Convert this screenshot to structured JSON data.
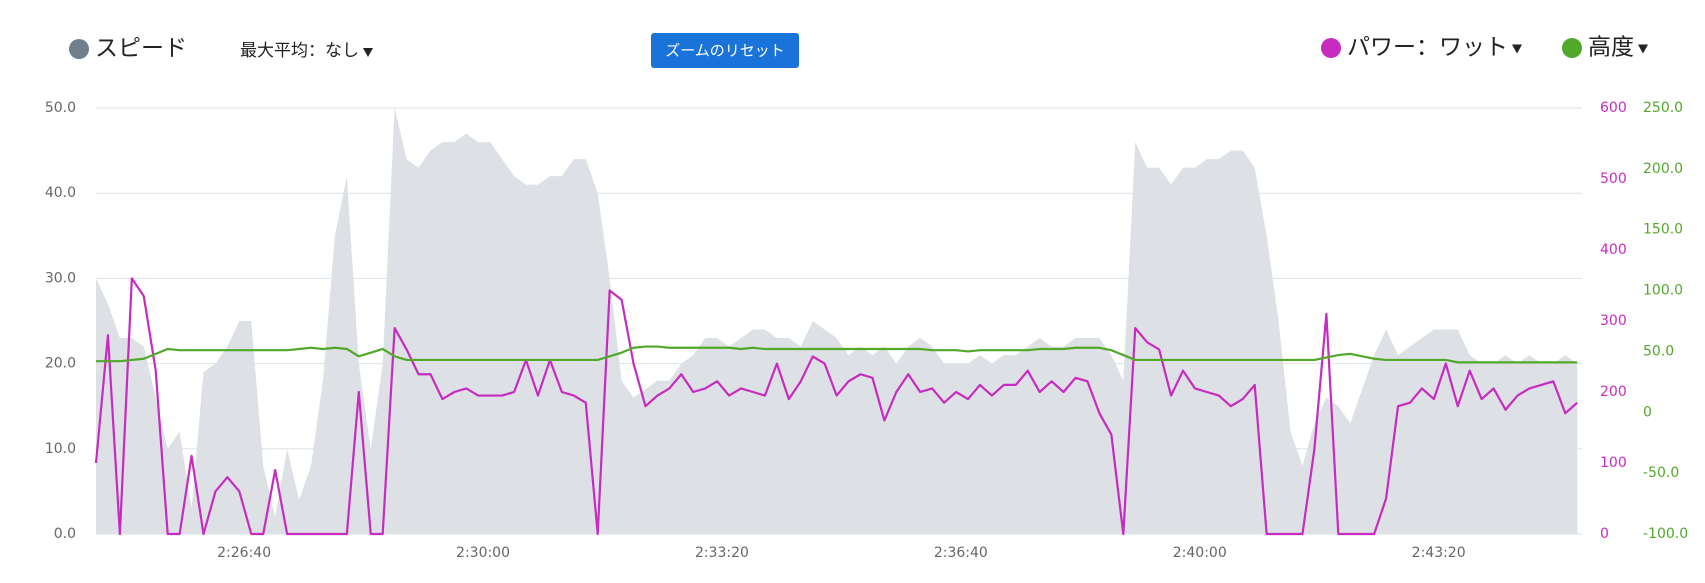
{
  "chart_data": {
    "type": "line",
    "toolbar": {
      "max_average": "最大平均：なし",
      "reset_zoom": "ズームのリセット"
    },
    "x": [
      8676,
      8686,
      8696,
      8706,
      8716,
      8726,
      8736,
      8746,
      8756,
      8766,
      8776,
      8786,
      8796,
      8806,
      8816,
      8826,
      8836,
      8846,
      8856,
      8866,
      8876,
      8886,
      8896,
      8906,
      8916,
      8926,
      8936,
      8946,
      8956,
      8966,
      8976,
      8986,
      8996,
      9006,
      9016,
      9026,
      9036,
      9046,
      9056,
      9066,
      9076,
      9086,
      9096,
      9106,
      9116,
      9126,
      9136,
      9146,
      9156,
      9166,
      9176,
      9186,
      9196,
      9206,
      9216,
      9226,
      9236,
      9246,
      9256,
      9266,
      9276,
      9286,
      9296,
      9306,
      9316,
      9326,
      9336,
      9346,
      9356,
      9366,
      9376,
      9386,
      9396,
      9406,
      9416,
      9426,
      9436,
      9446,
      9456,
      9466,
      9476,
      9486,
      9496,
      9506,
      9516,
      9526,
      9536,
      9546,
      9556,
      9566,
      9576,
      9586,
      9596,
      9606,
      9616,
      9626,
      9636,
      9646,
      9656,
      9666,
      9676,
      9686,
      9696,
      9706,
      9716,
      9726,
      9736,
      9746,
      9756,
      9766,
      9776,
      9786,
      9796,
      9806,
      9816,
      9826,
      9836,
      9846,
      9856,
      9866,
      9876,
      9886,
      9896,
      9906,
      9916
    ],
    "xlim": [
      8676,
      9920
    ],
    "xticks": [
      {
        "value": 8800,
        "label": "2:26:40"
      },
      {
        "value": 9000,
        "label": "2:30:00"
      },
      {
        "value": 9200,
        "label": "2:33:20"
      },
      {
        "value": 9400,
        "label": "2:36:40"
      },
      {
        "value": 9600,
        "label": "2:40:00"
      },
      {
        "value": 9800,
        "label": "2:43:20"
      }
    ],
    "ylim": [
      0,
      50
    ],
    "yticks": [
      {
        "value": 0,
        "label": "0.0"
      },
      {
        "value": 10,
        "label": "10.0"
      },
      {
        "value": 20,
        "label": "20.0"
      },
      {
        "value": 30,
        "label": "30.0"
      },
      {
        "value": 40,
        "label": "40.0"
      },
      {
        "value": 50,
        "label": "50.0"
      }
    ],
    "y2lim": [
      0,
      600
    ],
    "y2ticks": [
      0,
      100,
      200,
      300,
      400,
      500,
      600
    ],
    "y3lim": [
      -100,
      250
    ],
    "y3ticks": [
      {
        "value": -100,
        "label": "-100.0"
      },
      {
        "value": -50,
        "label": "-50.0"
      },
      {
        "value": 0,
        "label": "0"
      },
      {
        "value": 50,
        "label": "50.0"
      },
      {
        "value": 100,
        "label": "100.0"
      },
      {
        "value": 150,
        "label": "150.0"
      },
      {
        "value": 200,
        "label": "200.0"
      },
      {
        "value": 250,
        "label": "250.0"
      }
    ],
    "grid": true,
    "series": [
      {
        "name": "スピード",
        "type": "area",
        "axis": "y",
        "color": "#dde1e5",
        "values": [
          30,
          27,
          23,
          23,
          22,
          16,
          10,
          12,
          3,
          19,
          20,
          22,
          25,
          25,
          8,
          2,
          10,
          4,
          8,
          18,
          35,
          42,
          20,
          10,
          20,
          50,
          44,
          43,
          45,
          46,
          46,
          47,
          46,
          46,
          44,
          42,
          41,
          41,
          42,
          42,
          44,
          44,
          40,
          30,
          18,
          16,
          17,
          18,
          18,
          20,
          21,
          23,
          23,
          22,
          23,
          24,
          24,
          23,
          23,
          22,
          25,
          24,
          23,
          21,
          22,
          21,
          22,
          20,
          22,
          23,
          22,
          20,
          20,
          20,
          21,
          20,
          21,
          21,
          22,
          23,
          22,
          22,
          23,
          23,
          23,
          21,
          18,
          46,
          43,
          43,
          41,
          43,
          43,
          44,
          44,
          45,
          45,
          43,
          35,
          25,
          12,
          8,
          13,
          16,
          15,
          13,
          17,
          21,
          24,
          21,
          22,
          23,
          24,
          24,
          24,
          21,
          20,
          20,
          21,
          20,
          21,
          20,
          20,
          21,
          20
        ]
      },
      {
        "name": "パワー：ワット",
        "type": "line",
        "axis": "y2",
        "color": "#c72bbf",
        "values": [
          100,
          280,
          0,
          360,
          335,
          230,
          0,
          0,
          110,
          0,
          60,
          80,
          60,
          0,
          0,
          90,
          0,
          0,
          0,
          0,
          0,
          0,
          200,
          0,
          0,
          290,
          260,
          225,
          225,
          190,
          200,
          205,
          195,
          195,
          195,
          200,
          245,
          195,
          245,
          200,
          195,
          185,
          0,
          343,
          330,
          240,
          180,
          195,
          205,
          225,
          200,
          205,
          215,
          195,
          205,
          200,
          195,
          240,
          190,
          215,
          250,
          240,
          195,
          215,
          225,
          220,
          160,
          200,
          225,
          200,
          205,
          185,
          200,
          190,
          210,
          195,
          210,
          210,
          230,
          200,
          215,
          200,
          220,
          215,
          170,
          140,
          0,
          290,
          270,
          260,
          195,
          230,
          205,
          200,
          195,
          180,
          190,
          210,
          0,
          0,
          0,
          0,
          120,
          310,
          0,
          0,
          0,
          0,
          50,
          180,
          185,
          205,
          190,
          240,
          180,
          230,
          190,
          205,
          175,
          195,
          205,
          210,
          215,
          170,
          185
        ]
      },
      {
        "name": "高度",
        "type": "line",
        "axis": "y3",
        "color": "#52a82a",
        "values": [
          42,
          42,
          42,
          43,
          44,
          48,
          52,
          51,
          51,
          51,
          51,
          51,
          51,
          51,
          51,
          51,
          51,
          52,
          53,
          52,
          53,
          52,
          46,
          49,
          52,
          46,
          43,
          43,
          43,
          43,
          43,
          43,
          43,
          43,
          43,
          43,
          43,
          43,
          43,
          43,
          43,
          43,
          43,
          46,
          49,
          53,
          54,
          54,
          53,
          53,
          53,
          53,
          53,
          53,
          52,
          53,
          52,
          52,
          52,
          52,
          52,
          52,
          52,
          52,
          52,
          52,
          52,
          52,
          52,
          52,
          51,
          51,
          51,
          50,
          51,
          51,
          51,
          51,
          51,
          52,
          52,
          52,
          53,
          53,
          53,
          51,
          47,
          43,
          43,
          43,
          43,
          43,
          43,
          43,
          43,
          43,
          43,
          43,
          43,
          43,
          43,
          43,
          43,
          45,
          47,
          48,
          46,
          44,
          43,
          43,
          43,
          43,
          43,
          43,
          41,
          41,
          41,
          41,
          41,
          41,
          41,
          41,
          41,
          41,
          41
        ]
      }
    ]
  }
}
